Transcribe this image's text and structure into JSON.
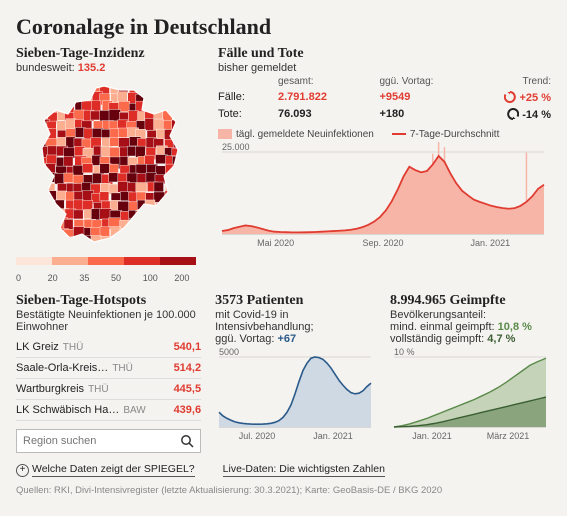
{
  "title": "Coronalage in Deutschland",
  "incidence": {
    "heading": "Sieben-Tage-Inzidenz",
    "subtext": "bundesweit:",
    "value": "135.2",
    "value_color": "#e03c31",
    "legend_ticks": [
      "0",
      "20",
      "35",
      "50",
      "100",
      "200"
    ],
    "map_colors": [
      "#fcae91",
      "#fb6a4a",
      "#de2d26",
      "#a50f15",
      "#67000d"
    ]
  },
  "cases": {
    "heading": "Fälle und Tote",
    "subtext": "bisher gemeldet",
    "columns": {
      "total": "gesamt:",
      "delta": "ggü. Vortag:",
      "trend": "Trend:"
    },
    "rows": [
      {
        "label": "Fälle:",
        "total": "2.791.822",
        "total_color": "#e03c31",
        "delta": "+9549",
        "delta_color": "#e03c31",
        "trend": "+25 %",
        "trend_dir": "up",
        "trend_color": "#e03c31"
      },
      {
        "label": "Tote:",
        "total": "76.093",
        "total_color": "#222",
        "delta": "+180",
        "delta_color": "#222",
        "trend": "-14 %",
        "trend_dir": "down",
        "trend_color": "#222"
      }
    ],
    "legend_bars": "tägl. gemeldete Neuinfektionen",
    "legend_line": "7-Tage-Durchschnitt",
    "chart": {
      "y_label": "25.000",
      "y_max": 25000,
      "x_ticks": [
        "Mai 2020",
        "Sep. 2020",
        "Jan. 2021"
      ],
      "bar_color": "#f7b5a8",
      "line_color": "#e03c31",
      "background": "#f5f3f0",
      "grid_color": "#d9d6d2",
      "line": [
        900,
        1200,
        1800,
        2200,
        2600,
        2400,
        2000,
        1500,
        1000,
        700,
        600,
        550,
        500,
        500,
        520,
        560,
        620,
        700,
        800,
        900,
        1000,
        1100,
        1300,
        1600,
        2100,
        2800,
        3800,
        5200,
        7200,
        10000,
        13500,
        17500,
        20500,
        19500,
        18800,
        19200,
        21200,
        23800,
        22000,
        18500,
        15500,
        13200,
        11800,
        10500,
        9800,
        9200,
        8600,
        8200,
        7900,
        7700,
        7900,
        8600,
        9800,
        11500,
        13800,
        15000
      ],
      "spikes": [
        0,
        0,
        0,
        0,
        0,
        0,
        0,
        0,
        0,
        0,
        0,
        0,
        0,
        0,
        0,
        0,
        0,
        0,
        0,
        0,
        0,
        0,
        0,
        0,
        0,
        0,
        0,
        0,
        0,
        0,
        0,
        0,
        0,
        0,
        0,
        0,
        24500,
        28000,
        26500,
        0,
        0,
        0,
        0,
        0,
        0,
        0,
        0,
        0,
        0,
        0,
        0,
        0,
        24800,
        0,
        0,
        0
      ]
    }
  },
  "hotspots": {
    "heading": "Sieben-Tage-Hotspots",
    "subtext": "Bestätigte Neuinfektionen je 100.000 Einwohner",
    "rows": [
      {
        "name": "LK Greiz",
        "state": "THÜ",
        "value": "540,1"
      },
      {
        "name": "Saale-Orla-Kreis…",
        "state": "THÜ",
        "value": "514,2"
      },
      {
        "name": "Wartburgkreis",
        "state": "THÜ",
        "value": "445,5"
      },
      {
        "name": "LK Schwäbisch Ha…",
        "state": "BAW",
        "value": "439,6"
      }
    ],
    "search_placeholder": "Region suchen"
  },
  "icu": {
    "heading_num": "3573",
    "heading_rest": "Patienten",
    "sub1": "mit Covid-19 in",
    "sub2": "Intensivbehandlung;",
    "sub3_pre": "ggü. Vortag: ",
    "sub3_val": "+67",
    "chart": {
      "y_label": "5000",
      "y_max": 5700,
      "x_ticks": [
        "Jul. 2020",
        "Jan. 2021"
      ],
      "line_color": "#2a5a8a",
      "fill_color": "#cfd9e4",
      "line": [
        1200,
        900,
        700,
        550,
        420,
        340,
        290,
        260,
        240,
        230,
        230,
        240,
        260,
        300,
        380,
        520,
        780,
        1200,
        1800,
        2700,
        3700,
        4600,
        5200,
        5600,
        5700,
        5650,
        5500,
        5200,
        4800,
        4300,
        3800,
        3400,
        3050,
        2800,
        2700,
        2750,
        2950,
        3300,
        3573
      ]
    }
  },
  "vacc": {
    "heading_num": "8.994.965",
    "heading_rest": "Geimpfte",
    "sub1": "Bevölkerungsanteil:",
    "sub2_pre": "mind. einmal geimpft: ",
    "sub2_val": "10,8 %",
    "sub3_pre": "vollständig geimpft: ",
    "sub3_val": "4,7 %",
    "chart": {
      "y_label": "10 %",
      "y_max": 11,
      "x_ticks": [
        "Jan. 2021",
        "März 2021"
      ],
      "line1_color": "#5a8a4a",
      "fill1_color": "#c5d4b8",
      "line2_color": "#3a5e32",
      "fill2_color": "#8aa57d",
      "line1": [
        0,
        0.2,
        0.5,
        0.9,
        1.3,
        1.8,
        2.3,
        2.8,
        3.3,
        3.8,
        4.3,
        4.9,
        5.5,
        6.2,
        7.0,
        7.9,
        8.8,
        9.7,
        10.3,
        10.8
      ],
      "line2": [
        0,
        0.05,
        0.1,
        0.2,
        0.35,
        0.55,
        0.8,
        1.1,
        1.4,
        1.7,
        2.0,
        2.3,
        2.6,
        2.9,
        3.2,
        3.5,
        3.8,
        4.1,
        4.4,
        4.7
      ]
    }
  },
  "footer_links": {
    "a": "Welche Daten zeigt der SPIEGEL?",
    "b": "Live-Daten: Die wichtigsten Zahlen"
  },
  "sources": "Quellen: RKI, Divi-Intensivregister (letzte Aktualisierung: 30.3.2021); Karte: GeoBasis-DE / BKG 2020"
}
